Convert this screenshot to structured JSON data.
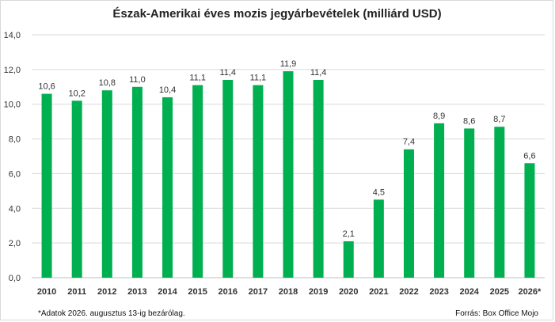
{
  "chart_data": {
    "type": "bar",
    "title": "Észak-Amerikai éves mozis jegyárbevételek (milliárd USD)",
    "categories": [
      "2010",
      "2011",
      "2012",
      "2013",
      "2014",
      "2015",
      "2016",
      "2017",
      "2018",
      "2019",
      "2020",
      "2021",
      "2022",
      "2023",
      "2024",
      "2025",
      "2026*"
    ],
    "values": [
      10.6,
      10.2,
      10.8,
      11.0,
      10.4,
      11.1,
      11.4,
      11.1,
      11.9,
      11.4,
      2.1,
      4.5,
      7.4,
      8.9,
      8.6,
      8.7,
      6.6
    ],
    "data_labels": [
      "10,6",
      "10,2",
      "10,8",
      "11,0",
      "10,4",
      "11,1",
      "11,4",
      "11,1",
      "11,9",
      "11,4",
      "2,1",
      "4,5",
      "7,4",
      "8,9",
      "8,6",
      "8,7",
      "6,6"
    ],
    "ylim": [
      0,
      14
    ],
    "yticks": [
      "0,0",
      "2,0",
      "4,0",
      "6,0",
      "8,0",
      "10,0",
      "12,0",
      "14,0"
    ],
    "grid": true,
    "bar_color": "#00b050",
    "footnote": "*Adatok 2026. augusztus 13-ig bezárólag.",
    "source": "Forrás: Box Office Mojo"
  }
}
